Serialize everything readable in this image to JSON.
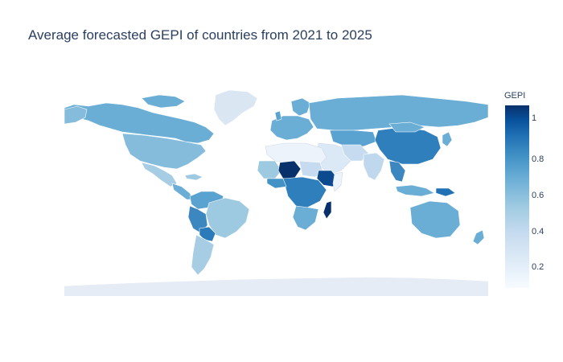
{
  "title": "Average forecasted GEPI of countries from 2021 to 2025",
  "colorbar": {
    "title": "GEPI",
    "ticks": [
      "1",
      "0.8",
      "0.6",
      "0.4",
      "0.2"
    ],
    "range": [
      0.08,
      1.08
    ],
    "colorscale": "Blues",
    "colors": [
      "#f7fbff",
      "#deebf7",
      "#c6dbef",
      "#9ecae1",
      "#6baed6",
      "#4292c6",
      "#2171b5",
      "#08519c",
      "#08306b"
    ]
  },
  "map": {
    "type": "choropleth",
    "projection": "equirectangular",
    "no_data_color": "#e5ecf6",
    "regions": [
      {
        "name": "Canada",
        "value": 0.62
      },
      {
        "name": "United States",
        "value": 0.56
      },
      {
        "name": "Greenland",
        "value": null
      },
      {
        "name": "Mexico",
        "value": 0.48
      },
      {
        "name": "Central America",
        "value": 0.58
      },
      {
        "name": "Colombia / Venezuela",
        "value": 0.64
      },
      {
        "name": "Peru / Ecuador",
        "value": 0.68
      },
      {
        "name": "Brazil",
        "value": 0.5
      },
      {
        "name": "Bolivia",
        "value": 0.72
      },
      {
        "name": "Argentina / Chile",
        "value": 0.52
      },
      {
        "name": "Europe",
        "value": 0.62
      },
      {
        "name": "Russia",
        "value": 0.6
      },
      {
        "name": "China",
        "value": 0.72
      },
      {
        "name": "India",
        "value": 0.36
      },
      {
        "name": "Middle East",
        "value": 0.2
      },
      {
        "name": "Southeast Asia",
        "value": 0.66
      },
      {
        "name": "Sahara / North Africa",
        "value": 0.15
      },
      {
        "name": "Niger / Nigeria",
        "value": 1.05
      },
      {
        "name": "West Africa",
        "value": 0.55
      },
      {
        "name": "Ethiopia",
        "value": 0.95
      },
      {
        "name": "Central Africa",
        "value": 0.74
      },
      {
        "name": "Southern Africa",
        "value": 0.6
      },
      {
        "name": "Madagascar",
        "value": 1.0
      },
      {
        "name": "Australia",
        "value": 0.6
      },
      {
        "name": "Papua New Guinea",
        "value": 0.82
      },
      {
        "name": "Antarctica",
        "value": null
      }
    ]
  }
}
